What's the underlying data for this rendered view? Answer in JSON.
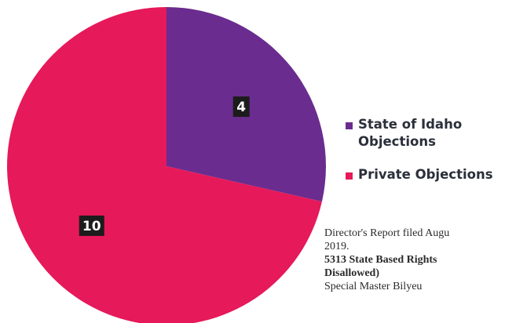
{
  "chart_data": {
    "type": "pie",
    "categories": [
      "State of Idaho Objections",
      "Private Objections"
    ],
    "values": [
      4,
      10
    ],
    "colors": [
      "#6a2c8f",
      "#e6195a"
    ],
    "legend_position": "right",
    "data_labels": [
      "4",
      "10"
    ]
  },
  "legend": {
    "items": [
      {
        "label": "State of Idaho Objections",
        "color": "#6a2c8f"
      },
      {
        "label": "Private Objections",
        "color": "#e6195a"
      }
    ]
  },
  "footer": {
    "line1": "Director's Report filed Augu",
    "line2": "2019.",
    "line3": "5313 State Based Rights",
    "line4": "Disallowed)",
    "line5": "Special Master Bilyeu"
  }
}
